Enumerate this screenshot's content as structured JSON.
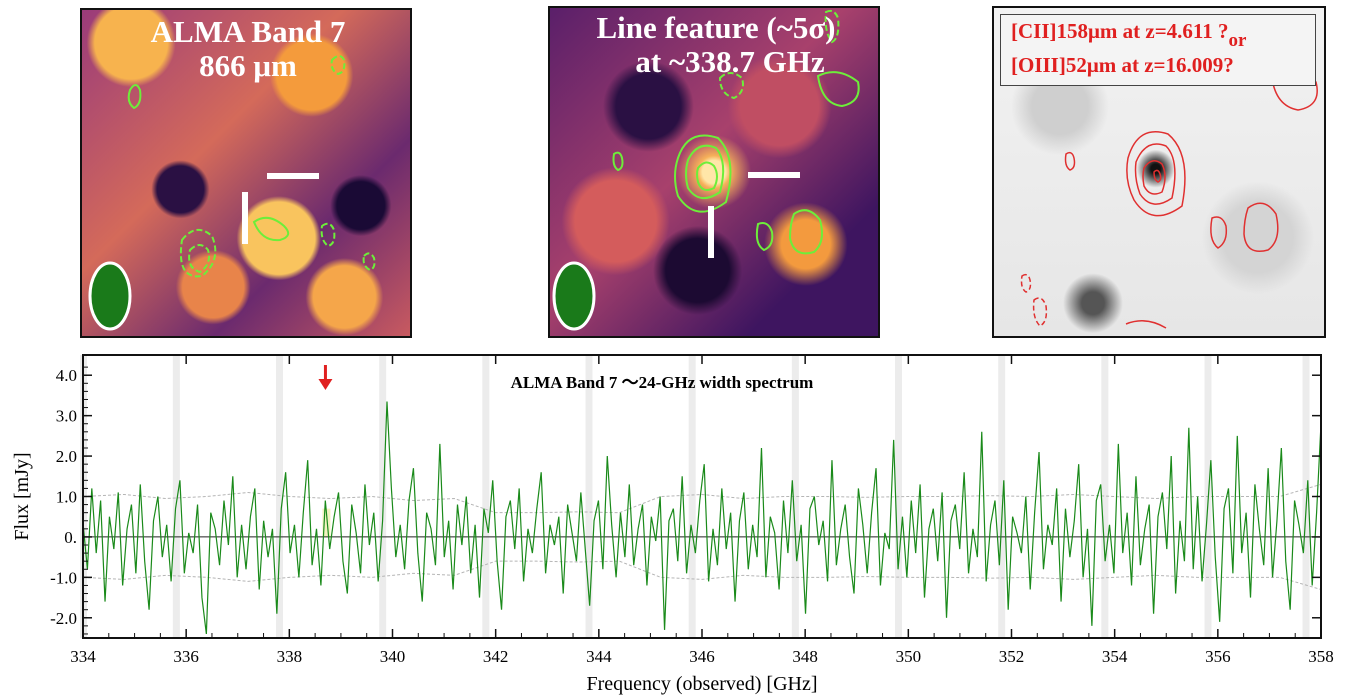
{
  "panels": {
    "band7_title_line1": "ALMA Band 7",
    "band7_title_line2": "866 μm",
    "line_title_line1": "Line feature (~5σ)",
    "line_title_line2": "at ~338.7 GHz",
    "hst_label_line1": "[CII]158μm at z=4.611 ?",
    "hst_label_or": "or",
    "hst_label_line2": "[OIII]52μm at z=16.009?"
  },
  "colors": {
    "spectrum": "#1a8a1a",
    "noise": "#b5b5b5",
    "arrow": "#e02020",
    "highlight": "#f3f3c0",
    "atm_band": "#ececec"
  },
  "chart_data": {
    "type": "line",
    "title": "ALMA Band 7 ～24-GHz width spectrum",
    "xlabel": "Frequency (observed) [GHz]",
    "ylabel": "Flux [mJy]",
    "xlim": [
      334,
      358
    ],
    "ylim": [
      -2.5,
      4.5
    ],
    "xticks": [
      334,
      336,
      338,
      340,
      342,
      344,
      346,
      348,
      350,
      352,
      354,
      356,
      358
    ],
    "yticks": [
      4.0,
      3.0,
      2.0,
      1.0,
      0.0,
      -1.0,
      -2.0
    ],
    "ytick_labels": [
      "4.0",
      "3.0",
      "2.0",
      "1.0",
      "0.",
      "-1.0",
      "-2.0"
    ],
    "line_feature_ghz": 338.7,
    "line_feature_peak_mjy": 3.35,
    "atm_bands_ghz": [
      334.0,
      335.8,
      337.8,
      339.8,
      341.8,
      343.8,
      345.8,
      347.8,
      349.8,
      351.8,
      353.8,
      355.8,
      357.7
    ],
    "noise_level_mjy": 1.0,
    "series": [
      {
        "style": "spectrum",
        "values": [
          0.35,
          -0.8,
          1.2,
          -0.4,
          0.9,
          -1.6,
          0.5,
          -0.3,
          1.1,
          -1.2,
          0.2,
          0.8,
          -0.9,
          1.3,
          -0.6,
          -1.8,
          0.4,
          1.0,
          -0.5,
          0.3,
          -1.1,
          0.7,
          1.4,
          -0.9,
          0.1,
          -0.4,
          0.8,
          -1.5,
          -2.4,
          0.6,
          0.2,
          -0.7,
          0.9,
          -0.2,
          1.5,
          -1.0,
          0.3,
          -0.8,
          0.5,
          1.2,
          -1.3,
          0.4,
          -0.5,
          0.2,
          -1.9,
          0.7,
          1.6,
          -0.4,
          0.3,
          -1.0,
          0.6,
          1.9,
          -0.7,
          0.2,
          -1.2,
          0.9,
          -0.3,
          0.5,
          1.1,
          -0.6,
          -1.4,
          0.8,
          0.1,
          -0.9,
          1.3,
          -0.2,
          0.6,
          -1.1,
          0.4,
          3.35,
          1.2,
          -0.5,
          0.3,
          -0.8,
          0.9,
          1.7,
          -0.4,
          -1.6,
          0.6,
          0.2,
          -0.7,
          2.3,
          -0.5,
          0.4,
          -1.3,
          0.8,
          -0.2,
          1.0,
          -0.9,
          0.3,
          -1.5,
          0.7,
          0.1,
          1.4,
          -0.6,
          -1.8,
          0.5,
          0.9,
          -0.3,
          1.2,
          -1.1,
          0.2,
          -0.4,
          0.7,
          1.6,
          -0.9,
          0.3,
          -0.2,
          0.5,
          -1.4,
          0.8,
          0.1,
          -0.6,
          1.1,
          -0.3,
          -1.7,
          0.4,
          0.9,
          -0.8,
          2.0,
          0.3,
          -1.0,
          0.6,
          -0.5,
          1.3,
          -0.7,
          0.2,
          0.8,
          -1.2,
          0.5,
          -0.1,
          1.0,
          -2.3,
          0.4,
          0.7,
          -0.6,
          1.5,
          -0.9,
          0.3,
          -0.4,
          0.9,
          1.8,
          -1.1,
          0.2,
          -0.7,
          1.2,
          -0.3,
          0.6,
          -1.6,
          0.4,
          1.1,
          -0.8,
          0.3,
          -0.5,
          2.2,
          -1.0,
          0.5,
          0.1,
          -1.3,
          0.9,
          -0.4,
          1.4,
          -0.6,
          0.3,
          -1.9,
          0.7,
          1.0,
          -0.2,
          0.4,
          -1.1,
          1.9,
          -0.7,
          0.2,
          0.8,
          -0.5,
          -1.4,
          1.2,
          0.3,
          -0.9,
          0.6,
          1.7,
          -1.2,
          0.1,
          -0.3,
          2.4,
          -0.8,
          0.5,
          -1.0,
          0.9,
          -0.4,
          1.3,
          -1.5,
          0.2,
          0.7,
          -0.6,
          1.1,
          -2.0,
          0.4,
          0.8,
          -0.3,
          1.6,
          -0.9,
          0.2,
          -0.5,
          2.6,
          -1.1,
          0.3,
          0.9,
          -0.7,
          1.4,
          -1.8,
          0.5,
          0.1,
          -0.4,
          1.0,
          -1.3,
          0.6,
          2.1,
          -0.8,
          0.3,
          -0.2,
          1.2,
          -1.6,
          0.7,
          -0.5,
          0.4,
          1.8,
          -1.0,
          0.2,
          -2.2,
          0.9,
          1.3,
          -0.6,
          0.3,
          -0.9,
          2.3,
          -0.4,
          0.6,
          -1.2,
          1.5,
          -0.7,
          0.2,
          0.8,
          -1.9,
          0.5,
          1.1,
          -0.3,
          2.0,
          -1.4,
          0.4,
          -0.6,
          2.7,
          -0.8,
          1.0,
          -1.1,
          0.3,
          1.9,
          -0.5,
          -2.1,
          0.7,
          1.2,
          -0.9,
          2.5,
          -0.4,
          0.6,
          -1.5,
          1.3,
          0.2,
          -0.7,
          1.7,
          -1.0,
          0.4,
          2.2,
          -0.6,
          -1.8,
          0.9,
          0.3,
          -0.4,
          1.4,
          -1.2,
          0.6,
          2.8
        ]
      },
      {
        "style": "noise",
        "name": "",
        "values": [
          1.0,
          1.05,
          0.95,
          1.0,
          1.1,
          1.0,
          0.95,
          1.0,
          0.9,
          0.95,
          0.6,
          0.6,
          0.62,
          0.6,
          1.0,
          1.05,
          0.95,
          1.0,
          1.0,
          0.98,
          1.0,
          1.0,
          1.02,
          1.0,
          1.05,
          1.0,
          0.95,
          1.0,
          1.0,
          1.0,
          1.3
        ]
      }
    ]
  }
}
